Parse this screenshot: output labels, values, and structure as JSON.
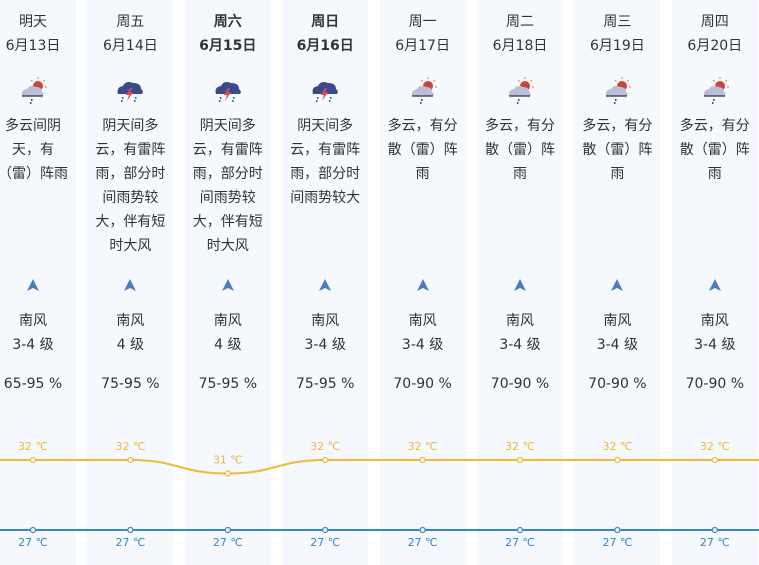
{
  "colors": {
    "high": "#f0b93c",
    "low": "#3a86c8",
    "column_bg": "#f5f8fc",
    "arrow": "#4a7cc0"
  },
  "days": [
    {
      "weekday": "明天",
      "date": "6月13日",
      "bold": false,
      "icon": "partly-cloudy-rain-icon",
      "desc": [
        "多云间阴",
        "天，有",
        "（雷）阵雨"
      ],
      "wind_dir": "南风",
      "wind_level": "3-4 级",
      "humidity": "65-95 %",
      "high": "32 ℃",
      "low": "27 ℃"
    },
    {
      "weekday": "周五",
      "date": "6月14日",
      "bold": false,
      "icon": "thunderstorm-icon",
      "desc": [
        "阴天间多",
        "云，有雷阵",
        "雨，部分时",
        "间雨势较",
        "大，伴有短",
        "时大风"
      ],
      "wind_dir": "南风",
      "wind_level": "4 级",
      "humidity": "75-95 %",
      "high": "32 ℃",
      "low": "27 ℃"
    },
    {
      "weekday": "周六",
      "date": "6月15日",
      "bold": true,
      "icon": "thunderstorm-icon",
      "desc": [
        "阴天间多",
        "云，有雷阵",
        "雨，部分时",
        "间雨势较",
        "大，伴有短",
        "时大风"
      ],
      "wind_dir": "南风",
      "wind_level": "4 级",
      "humidity": "75-95 %",
      "high": "31 ℃",
      "low": "27 ℃"
    },
    {
      "weekday": "周日",
      "date": "6月16日",
      "bold": true,
      "icon": "thunderstorm-icon",
      "desc": [
        "阴天间多",
        "云，有雷阵",
        "雨，部分时",
        "间雨势较大"
      ],
      "wind_dir": "南风",
      "wind_level": "3-4 级",
      "humidity": "75-95 %",
      "high": "32 ℃",
      "low": "27 ℃"
    },
    {
      "weekday": "周一",
      "date": "6月17日",
      "bold": false,
      "icon": "partly-cloudy-rain-icon",
      "desc": [
        "多云，有分",
        "散（雷）阵",
        "雨"
      ],
      "wind_dir": "南风",
      "wind_level": "3-4 级",
      "humidity": "70-90 %",
      "high": "32 ℃",
      "low": "27 ℃"
    },
    {
      "weekday": "周二",
      "date": "6月18日",
      "bold": false,
      "icon": "partly-cloudy-rain-icon",
      "desc": [
        "多云，有分",
        "散（雷）阵",
        "雨"
      ],
      "wind_dir": "南风",
      "wind_level": "3-4 级",
      "humidity": "70-90 %",
      "high": "32 ℃",
      "low": "27 ℃"
    },
    {
      "weekday": "周三",
      "date": "6月19日",
      "bold": false,
      "icon": "partly-cloudy-rain-icon",
      "desc": [
        "多云，有分",
        "散（雷）阵",
        "雨"
      ],
      "wind_dir": "南风",
      "wind_level": "3-4 级",
      "humidity": "70-90 %",
      "high": "32 ℃",
      "low": "27 ℃"
    },
    {
      "weekday": "周四",
      "date": "6月20日",
      "bold": false,
      "icon": "partly-cloudy-rain-icon",
      "desc": [
        "多云，有分",
        "散（雷）阵",
        "雨"
      ],
      "wind_dir": "南风",
      "wind_level": "3-4 级",
      "humidity": "70-90 %",
      "high": "32 ℃",
      "low": "27 ℃"
    }
  ],
  "chart_data": {
    "type": "line",
    "categories": [
      "6月13日",
      "6月14日",
      "6月15日",
      "6月16日",
      "6月17日",
      "6月18日",
      "6月19日",
      "6月20日"
    ],
    "series": [
      {
        "values": [
          32,
          32,
          31,
          32,
          32,
          32,
          32,
          32
        ]
      },
      {
        "values": [
          27,
          27,
          27,
          27,
          27,
          27,
          27,
          27
        ]
      }
    ]
  }
}
